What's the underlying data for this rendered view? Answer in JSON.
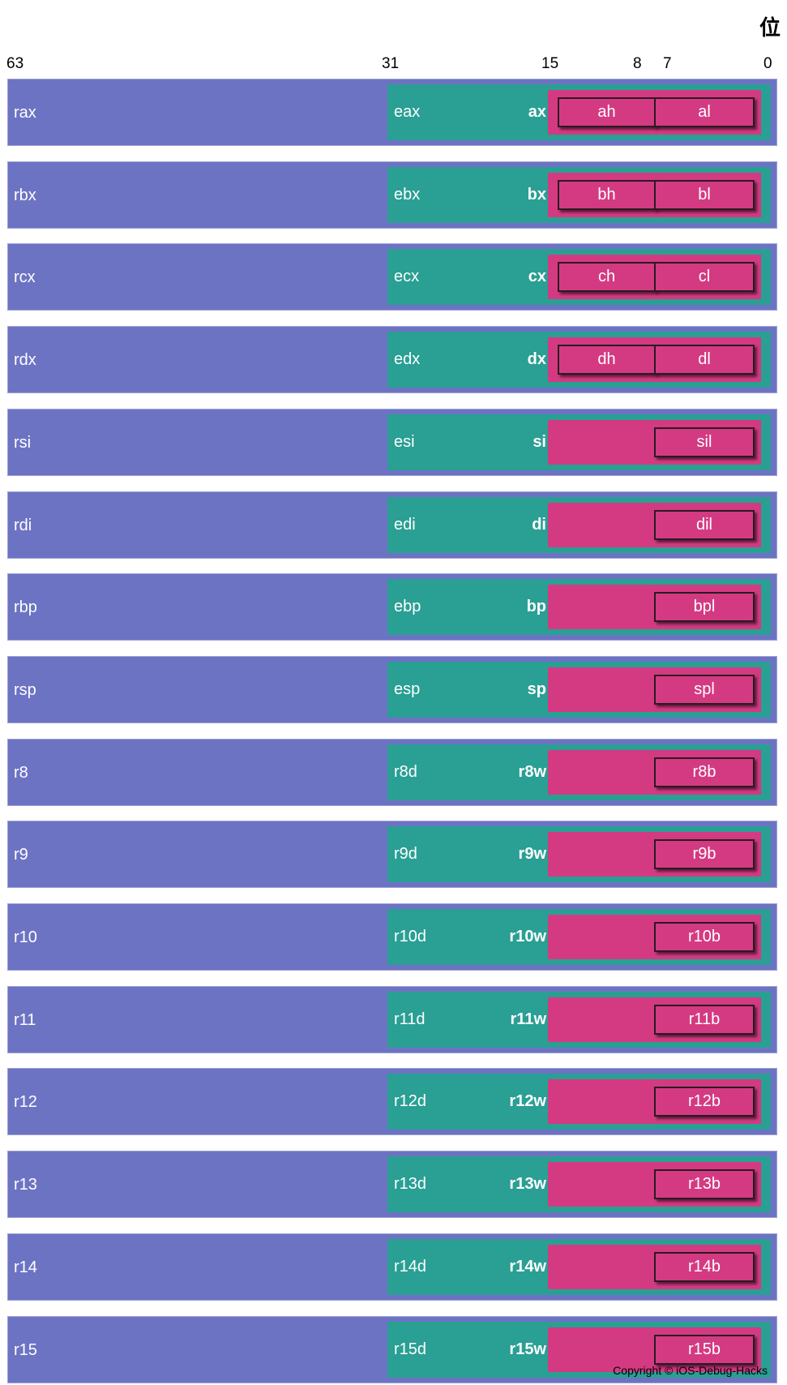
{
  "header": {
    "bits_title": "位",
    "bit_labels": [
      "63",
      "31",
      "15",
      "8",
      "7",
      "0"
    ]
  },
  "registers": [
    {
      "r64": "rax",
      "r32": "eax",
      "r16": "ax",
      "r8h": "ah",
      "r8l": "al"
    },
    {
      "r64": "rbx",
      "r32": "ebx",
      "r16": "bx",
      "r8h": "bh",
      "r8l": "bl"
    },
    {
      "r64": "rcx",
      "r32": "ecx",
      "r16": "cx",
      "r8h": "ch",
      "r8l": "cl"
    },
    {
      "r64": "rdx",
      "r32": "edx",
      "r16": "dx",
      "r8h": "dh",
      "r8l": "dl"
    },
    {
      "r64": "rsi",
      "r32": "esi",
      "r16": "si",
      "r8h": "",
      "r8l": "sil"
    },
    {
      "r64": "rdi",
      "r32": "edi",
      "r16": "di",
      "r8h": "",
      "r8l": "dil"
    },
    {
      "r64": "rbp",
      "r32": "ebp",
      "r16": "bp",
      "r8h": "",
      "r8l": "bpl"
    },
    {
      "r64": "rsp",
      "r32": "esp",
      "r16": "sp",
      "r8h": "",
      "r8l": "spl"
    },
    {
      "r64": "r8",
      "r32": "r8d",
      "r16": "r8w",
      "r8h": "",
      "r8l": "r8b"
    },
    {
      "r64": "r9",
      "r32": "r9d",
      "r16": "r9w",
      "r8h": "",
      "r8l": "r9b"
    },
    {
      "r64": "r10",
      "r32": "r10d",
      "r16": "r10w",
      "r8h": "",
      "r8l": "r10b"
    },
    {
      "r64": "r11",
      "r32": "r11d",
      "r16": "r11w",
      "r8h": "",
      "r8l": "r11b"
    },
    {
      "r64": "r12",
      "r32": "r12d",
      "r16": "r12w",
      "r8h": "",
      "r8l": "r12b"
    },
    {
      "r64": "r13",
      "r32": "r13d",
      "r16": "r13w",
      "r8h": "",
      "r8l": "r13b"
    },
    {
      "r64": "r14",
      "r32": "r14d",
      "r16": "r14w",
      "r8h": "",
      "r8l": "r14b"
    },
    {
      "r64": "r15",
      "r32": "r15d",
      "r16": "r15w",
      "r8h": "",
      "r8l": "r15b"
    }
  ],
  "footer": {
    "copyright": "Copyright © iOS-Debug-Hacks"
  },
  "colors": {
    "reg64": "#6d73c3",
    "reg32": "#2a9f94",
    "reg16": "#d43a82",
    "reg8": "#d43a82"
  }
}
